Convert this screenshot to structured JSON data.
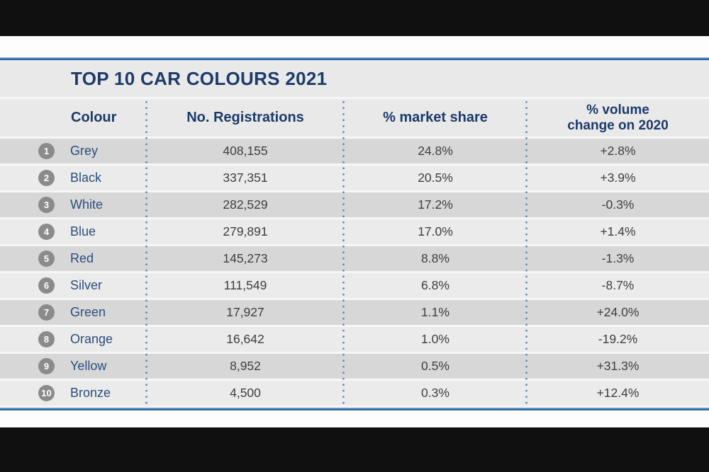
{
  "table": {
    "title": "TOP 10 CAR COLOURS 2021",
    "columns": [
      {
        "label": "Colour"
      },
      {
        "label": "No. Registrations"
      },
      {
        "label": "% market share"
      },
      {
        "label": "% volume change on 2020",
        "lines": [
          "% volume",
          "change on 2020"
        ]
      }
    ],
    "rows": [
      {
        "rank": "1",
        "colour": "Grey",
        "registrations": "408,155",
        "market_share": "24.8%",
        "volume_change": "+2.8%"
      },
      {
        "rank": "2",
        "colour": "Black",
        "registrations": "337,351",
        "market_share": "20.5%",
        "volume_change": "+3.9%"
      },
      {
        "rank": "3",
        "colour": "White",
        "registrations": "282,529",
        "market_share": "17.2%",
        "volume_change": "-0.3%"
      },
      {
        "rank": "4",
        "colour": "Blue",
        "registrations": "279,891",
        "market_share": "17.0%",
        "volume_change": "+1.4%"
      },
      {
        "rank": "5",
        "colour": "Red",
        "registrations": "145,273",
        "market_share": "8.8%",
        "volume_change": "-1.3%"
      },
      {
        "rank": "6",
        "colour": "Silver",
        "registrations": "111,549",
        "market_share": "6.8%",
        "volume_change": "-8.7%"
      },
      {
        "rank": "7",
        "colour": "Green",
        "registrations": "17,927",
        "market_share": "1.1%",
        "volume_change": "+24.0%"
      },
      {
        "rank": "8",
        "colour": "Orange",
        "registrations": "16,642",
        "market_share": "1.0%",
        "volume_change": "-19.2%"
      },
      {
        "rank": "9",
        "colour": "Yellow",
        "registrations": "8,952",
        "market_share": "0.5%",
        "volume_change": "+31.3%"
      },
      {
        "rank": "10",
        "colour": "Bronze",
        "registrations": "4,500",
        "market_share": "0.3%",
        "volume_change": "+12.4%"
      }
    ]
  },
  "colors": {
    "navy_text": "#1c3a6b",
    "colour_name_text": "#2c4d7e",
    "value_text": "#3e3e3e",
    "blue_rule": "#3d79b3",
    "dot_separator": "#6186b2",
    "stripe_dark": "#d7d7d7",
    "stripe_light": "#ebebeb",
    "rank_badge": "#8b8b8b",
    "letterbox": "#101010"
  },
  "chart_data": {
    "type": "table",
    "title": "TOP 10 CAR COLOURS 2021",
    "columns": [
      "Colour",
      "No. Registrations",
      "% market share",
      "% volume change on 2020"
    ],
    "rows": [
      [
        "Grey",
        408155,
        24.8,
        2.8
      ],
      [
        "Black",
        337351,
        20.5,
        3.9
      ],
      [
        "White",
        282529,
        17.2,
        -0.3
      ],
      [
        "Blue",
        279891,
        17.0,
        1.4
      ],
      [
        "Red",
        145273,
        8.8,
        -1.3
      ],
      [
        "Silver",
        111549,
        6.8,
        -8.7
      ],
      [
        "Green",
        17927,
        1.1,
        24.0
      ],
      [
        "Orange",
        16642,
        1.0,
        -19.2
      ],
      [
        "Yellow",
        8952,
        0.5,
        31.3
      ],
      [
        "Bronze",
        4500,
        0.3,
        12.4
      ]
    ]
  }
}
